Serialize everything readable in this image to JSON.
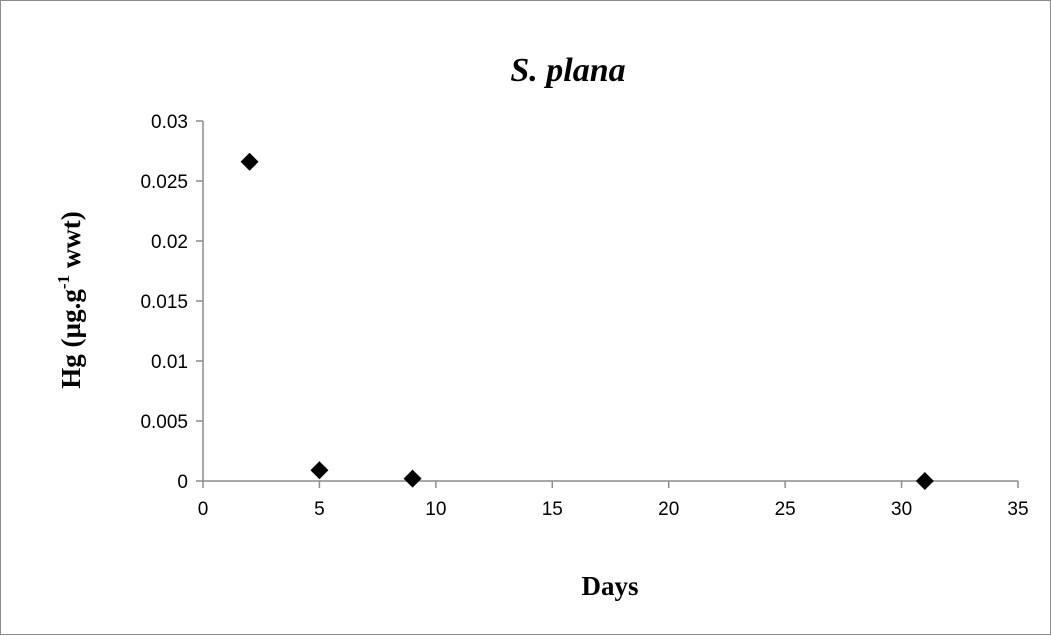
{
  "chart_data": {
    "type": "scatter",
    "title": "S. plana",
    "xlabel": "Days",
    "ylabel": {
      "main": "Hg (µg.g",
      "sup": "-1",
      "rest": " wwt)"
    },
    "xlim": [
      0,
      35
    ],
    "ylim": [
      0,
      0.03
    ],
    "x_ticks": [
      0,
      5,
      10,
      15,
      20,
      25,
      30,
      35
    ],
    "y_ticks": [
      0,
      0.005,
      0.01,
      0.015,
      0.02,
      0.025,
      0.03
    ],
    "grid": false,
    "legend": "none",
    "marker": "diamond",
    "marker_color": "#000000",
    "points": [
      {
        "x": 2,
        "y": 0.0266
      },
      {
        "x": 5,
        "y": 0.0009
      },
      {
        "x": 9,
        "y": 0.0002
      },
      {
        "x": 31,
        "y": 0.0
      }
    ]
  }
}
